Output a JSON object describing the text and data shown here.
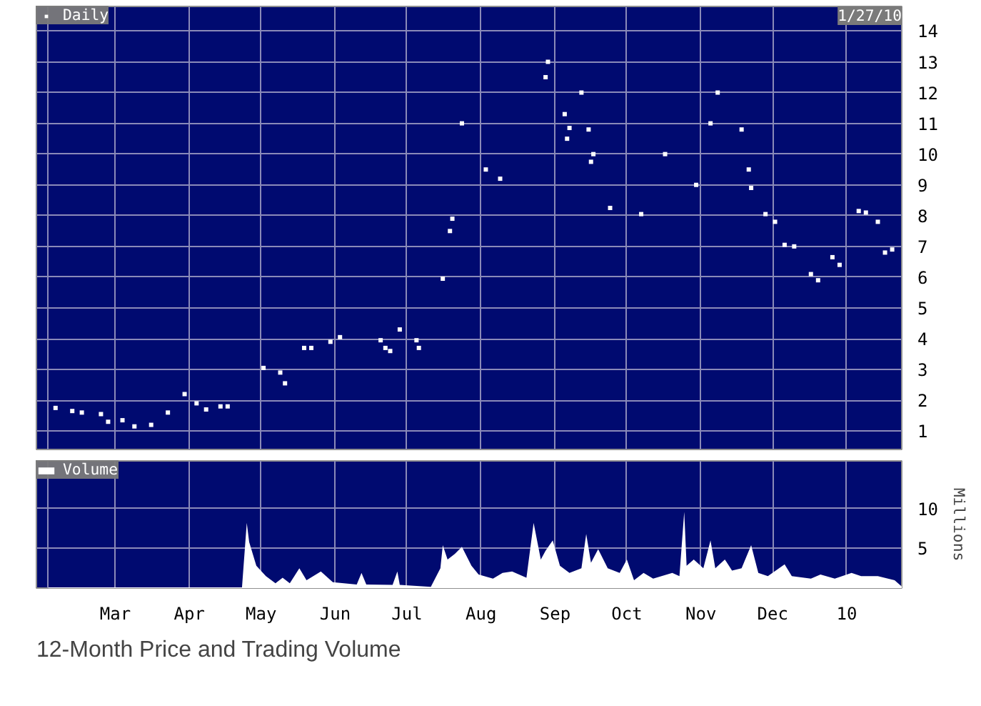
{
  "chart_data": [
    {
      "type": "scatter",
      "annotations": [
        "1/27/10"
      ],
      "marker": "square",
      "grid": true,
      "legend": "top left",
      "tick_labels": "y",
      "xlim": [
        "2009-01-27",
        "2010-01-24"
      ],
      "ylim": [
        0.4,
        14.8
      ],
      "yticks": [
        1,
        2,
        3,
        4,
        5,
        6,
        7,
        8,
        9,
        10,
        11,
        12,
        13,
        14
      ],
      "xticks": [
        {
          "value": "2009-02-01",
          "label": null
        },
        {
          "value": "2009-03-01",
          "label": null
        },
        {
          "value": "2009-04-01",
          "label": null
        },
        {
          "value": "2009-05-01",
          "label": null
        },
        {
          "value": "2009-06-01",
          "label": null
        },
        {
          "value": "2009-07-01",
          "label": null
        },
        {
          "value": "2009-08-01",
          "label": null
        },
        {
          "value": "2009-09-01",
          "label": null
        },
        {
          "value": "2009-10-01",
          "label": null
        },
        {
          "value": "2009-11-01",
          "label": null
        },
        {
          "value": "2009-12-01",
          "label": null
        },
        {
          "value": "2010-01-01",
          "label": null
        }
      ],
      "series": [
        {
          "name": "Daily",
          "color": "#ffffff",
          "x": [
            "2009-02-04",
            "2009-02-11",
            "2009-02-15",
            "2009-02-23",
            "2009-02-26",
            "2009-03-04",
            "2009-03-09",
            "2009-03-16",
            "2009-03-23",
            "2009-03-30",
            "2009-04-04",
            "2009-04-08",
            "2009-04-14",
            "2009-04-17",
            "2009-05-02",
            "2009-05-09",
            "2009-05-11",
            "2009-05-19",
            "2009-05-22",
            "2009-05-30",
            "2009-06-03",
            "2009-06-20",
            "2009-06-22",
            "2009-06-24",
            "2009-06-28",
            "2009-07-05",
            "2009-07-06",
            "2009-07-16",
            "2009-07-19",
            "2009-07-20",
            "2009-07-24",
            "2009-08-03",
            "2009-08-09",
            "2009-08-28",
            "2009-08-29",
            "2009-09-05",
            "2009-09-06",
            "2009-09-07",
            "2009-09-12",
            "2009-09-15",
            "2009-09-16",
            "2009-09-17",
            "2009-09-24",
            "2009-10-07",
            "2009-10-17",
            "2009-10-30",
            "2009-11-05",
            "2009-11-08",
            "2009-11-18",
            "2009-11-21",
            "2009-11-22",
            "2009-11-28",
            "2009-12-02",
            "2009-12-06",
            "2009-12-10",
            "2009-12-17",
            "2009-12-20",
            "2009-12-26",
            "2009-12-29",
            "2010-01-06",
            "2010-01-09",
            "2010-01-14",
            "2010-01-17",
            "2010-01-20"
          ],
          "values": [
            1.75,
            1.65,
            1.6,
            1.55,
            1.3,
            1.35,
            1.15,
            1.2,
            1.6,
            2.2,
            1.9,
            1.7,
            1.8,
            1.8,
            3.05,
            2.9,
            2.55,
            3.7,
            3.7,
            3.9,
            4.05,
            3.95,
            3.7,
            3.6,
            4.3,
            3.95,
            3.7,
            5.95,
            7.5,
            7.9,
            11.0,
            9.5,
            9.2,
            12.5,
            13.0,
            11.3,
            10.5,
            10.85,
            12.0,
            10.8,
            9.75,
            10.0,
            8.25,
            8.05,
            10.0,
            9.0,
            11.0,
            12.0,
            10.8,
            9.5,
            8.9,
            8.05,
            7.8,
            7.05,
            7.0,
            6.1,
            5.9,
            6.65,
            6.4,
            8.15,
            8.1,
            7.8,
            6.8,
            6.9
          ]
        }
      ]
    },
    {
      "type": "area",
      "ylabel": "Millions",
      "grid": true,
      "legend": "top left",
      "annotations": [
        "12-Month Price and Trading Volume"
      ],
      "xlim": [
        "2009-01-27",
        "2010-01-24"
      ],
      "ylim": [
        0,
        16
      ],
      "yticks": [
        5,
        10
      ],
      "xticks": [
        {
          "value": "2009-02-01",
          "label": null
        },
        {
          "value": "2009-03-01",
          "label": "Mar"
        },
        {
          "value": "2009-04-01",
          "label": "Apr"
        },
        {
          "value": "2009-05-01",
          "label": "May"
        },
        {
          "value": "2009-06-01",
          "label": "Jun"
        },
        {
          "value": "2009-07-01",
          "label": "Jul"
        },
        {
          "value": "2009-08-01",
          "label": "Aug"
        },
        {
          "value": "2009-09-01",
          "label": "Sep"
        },
        {
          "value": "2009-10-01",
          "label": "Oct"
        },
        {
          "value": "2009-11-01",
          "label": "Nov"
        },
        {
          "value": "2009-12-01",
          "label": "Dec"
        },
        {
          "value": "2010-01-01",
          "label": "10"
        }
      ],
      "series": [
        {
          "name": "Volume",
          "color": "#ffffff",
          "x": [
            "2009-02-01",
            "2009-04-20",
            "2009-04-23",
            "2009-04-25",
            "2009-04-26",
            "2009-04-29",
            "2009-05-03",
            "2009-05-07",
            "2009-05-10",
            "2009-05-13",
            "2009-05-17",
            "2009-05-20",
            "2009-05-26",
            "2009-05-31",
            "2009-06-10",
            "2009-06-12",
            "2009-06-14",
            "2009-06-25",
            "2009-06-27",
            "2009-06-28",
            "2009-07-11",
            "2009-07-15",
            "2009-07-16",
            "2009-07-18",
            "2009-07-21",
            "2009-07-24",
            "2009-07-28",
            "2009-07-31",
            "2009-08-06",
            "2009-08-10",
            "2009-08-14",
            "2009-08-20",
            "2009-08-23",
            "2009-08-26",
            "2009-08-28",
            "2009-08-31",
            "2009-09-03",
            "2009-09-07",
            "2009-09-12",
            "2009-09-14",
            "2009-09-16",
            "2009-09-19",
            "2009-09-23",
            "2009-09-28",
            "2009-10-01",
            "2009-10-04",
            "2009-10-08",
            "2009-10-12",
            "2009-10-20",
            "2009-10-23",
            "2009-10-25",
            "2009-10-26",
            "2009-10-29",
            "2009-11-02",
            "2009-11-05",
            "2009-11-07",
            "2009-11-11",
            "2009-11-14",
            "2009-11-18",
            "2009-11-22",
            "2009-11-25",
            "2009-11-29",
            "2009-12-06",
            "2009-12-09",
            "2009-12-17",
            "2009-12-21",
            "2009-12-27",
            "2010-01-03",
            "2010-01-07",
            "2010-01-14",
            "2010-01-21",
            "2010-01-24"
          ],
          "values": [
            0.1,
            0.1,
            0.1,
            8.2,
            5.8,
            2.8,
            1.5,
            0.6,
            1.3,
            0.6,
            2.5,
            1.0,
            2.1,
            0.75,
            0.45,
            1.9,
            0.45,
            0.4,
            2.1,
            0.4,
            0.15,
            2.5,
            5.4,
            3.6,
            4.3,
            5.2,
            2.8,
            1.7,
            1.2,
            1.9,
            2.1,
            1.3,
            8.2,
            3.6,
            4.7,
            6.0,
            2.8,
            1.9,
            2.5,
            6.8,
            3.2,
            4.9,
            2.5,
            1.9,
            3.6,
            1.0,
            1.9,
            1.2,
            1.9,
            1.5,
            9.6,
            2.8,
            3.6,
            2.5,
            6.0,
            2.5,
            3.6,
            2.2,
            2.5,
            5.4,
            1.9,
            1.5,
            3.0,
            1.5,
            1.2,
            1.7,
            1.2,
            1.9,
            1.5,
            1.5,
            1.0,
            0.2
          ]
        }
      ]
    }
  ]
}
